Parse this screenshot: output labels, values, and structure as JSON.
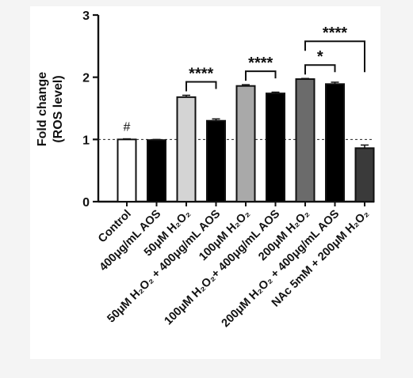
{
  "chart_data": {
    "type": "bar",
    "ylabel_line1": "Fold change",
    "ylabel_line2": "(ROS level)",
    "ylim": [
      0,
      3
    ],
    "yticks": [
      "0",
      "1",
      "2",
      "3"
    ],
    "reference_line": 1,
    "bars": [
      {
        "label": "Control",
        "value": 1.0,
        "error": 0.01,
        "fill": "#ffffff"
      },
      {
        "label": "400μg/mL AOS",
        "value": 0.99,
        "error": 0.01,
        "fill": "#000000"
      },
      {
        "label": "50μM H₂O₂",
        "value": 1.68,
        "error": 0.03,
        "fill": "#d4d4d4"
      },
      {
        "label": "50μM H₂O₂ + 400μg/mL AOS",
        "value": 1.3,
        "error": 0.03,
        "fill": "#000000"
      },
      {
        "label": "100μM H₂O₂",
        "value": 1.86,
        "error": 0.02,
        "fill": "#a9a9a9"
      },
      {
        "label": "100μM H₂O₂+ 400μg/mL AOS",
        "value": 1.74,
        "error": 0.02,
        "fill": "#000000"
      },
      {
        "label": "200μM H₂O₂",
        "value": 1.97,
        "error": 0.01,
        "fill": "#6b6b6b"
      },
      {
        "label": "200μM H₂O₂ + 400μg/mL AOS",
        "value": 1.89,
        "error": 0.03,
        "fill": "#000000"
      },
      {
        "label": "NAc 5mM + 200μM H₂O₂",
        "value": 0.86,
        "error": 0.05,
        "fill": "#3a3a3a"
      }
    ],
    "bar_marks": [
      {
        "bar": 0,
        "text": "#"
      }
    ],
    "significance": [
      {
        "from": 2,
        "to": 3,
        "text": "****"
      },
      {
        "from": 4,
        "to": 5,
        "text": "****"
      },
      {
        "from": 6,
        "to": 7,
        "text": "*"
      },
      {
        "from": 6,
        "to": 8,
        "text": "****"
      }
    ]
  }
}
